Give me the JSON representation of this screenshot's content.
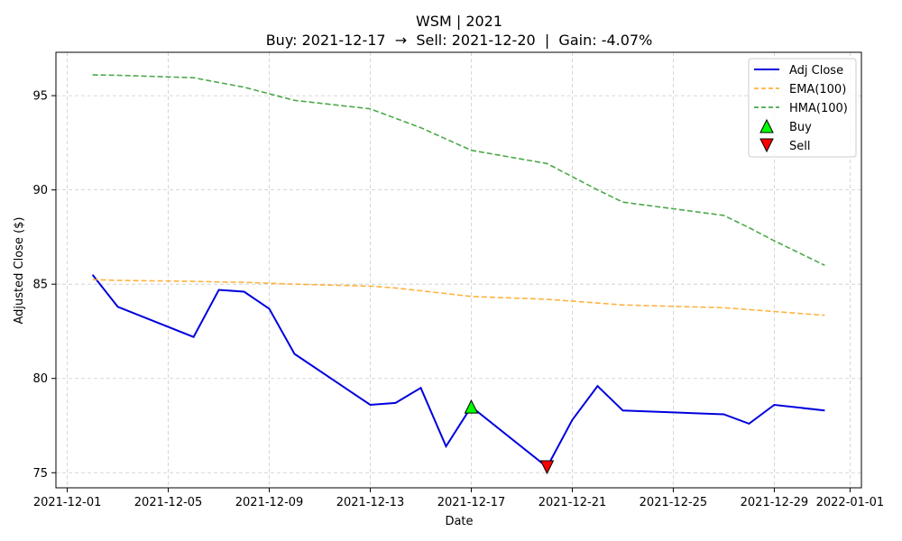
{
  "chart_data": {
    "type": "line",
    "title": "WSM | 2021",
    "subtitle": "Buy: 2021-12-17  →  Sell: 2021-12-20  |  Gain: -4.07%",
    "xlabel": "Date",
    "ylabel": "Adjusted Close ($)",
    "xlim": [
      "2021-12-01",
      "2022-01-01"
    ],
    "ylim": [
      74.2,
      97.3
    ],
    "x_ticks": [
      "2021-12-01",
      "2021-12-05",
      "2021-12-09",
      "2021-12-13",
      "2021-12-17",
      "2021-12-21",
      "2021-12-25",
      "2021-12-29",
      "2022-01-01"
    ],
    "y_ticks": [
      75,
      80,
      85,
      90,
      95
    ],
    "grid": true,
    "legend_position": "top-right",
    "series": [
      {
        "name": "Adj Close",
        "color": "#0000dd",
        "style": "solid",
        "x": [
          "2021-12-02",
          "2021-12-03",
          "2021-12-06",
          "2021-12-07",
          "2021-12-08",
          "2021-12-09",
          "2021-12-10",
          "2021-12-13",
          "2021-12-14",
          "2021-12-15",
          "2021-12-16",
          "2021-12-17",
          "2021-12-20",
          "2021-12-21",
          "2021-12-22",
          "2021-12-23",
          "2021-12-27",
          "2021-12-28",
          "2021-12-29",
          "2021-12-31"
        ],
        "values": [
          85.5,
          83.8,
          82.2,
          84.7,
          84.6,
          83.7,
          81.3,
          78.6,
          78.7,
          79.5,
          76.4,
          78.5,
          75.3,
          77.8,
          79.6,
          78.3,
          78.1,
          77.6,
          78.6,
          78.3
        ]
      },
      {
        "name": "EMA(100)",
        "color": "#ffa520",
        "style": "dashed",
        "x": [
          "2021-12-02",
          "2021-12-03",
          "2021-12-06",
          "2021-12-07",
          "2021-12-08",
          "2021-12-09",
          "2021-12-10",
          "2021-12-13",
          "2021-12-14",
          "2021-12-15",
          "2021-12-16",
          "2021-12-17",
          "2021-12-20",
          "2021-12-21",
          "2021-12-22",
          "2021-12-23",
          "2021-12-27",
          "2021-12-28",
          "2021-12-29",
          "2021-12-31"
        ],
        "values": [
          85.25,
          85.2,
          85.15,
          85.12,
          85.1,
          85.05,
          85.0,
          84.9,
          84.8,
          84.65,
          84.5,
          84.35,
          84.2,
          84.1,
          84.0,
          83.9,
          83.75,
          83.65,
          83.55,
          83.35
        ]
      },
      {
        "name": "HMA(100)",
        "color": "#2a9a2a",
        "style": "dashed",
        "x": [
          "2021-12-02",
          "2021-12-03",
          "2021-12-06",
          "2021-12-07",
          "2021-12-08",
          "2021-12-09",
          "2021-12-10",
          "2021-12-13",
          "2021-12-14",
          "2021-12-15",
          "2021-12-16",
          "2021-12-17",
          "2021-12-20",
          "2021-12-21",
          "2021-12-22",
          "2021-12-23",
          "2021-12-27",
          "2021-12-28",
          "2021-12-29",
          "2021-12-31"
        ],
        "values": [
          96.1,
          96.08,
          95.95,
          95.7,
          95.45,
          95.1,
          94.75,
          94.3,
          93.8,
          93.3,
          92.7,
          92.1,
          91.4,
          90.7,
          90.0,
          89.35,
          88.65,
          88.0,
          87.3,
          86.0
        ]
      }
    ],
    "markers": [
      {
        "name": "Buy",
        "x": "2021-12-17",
        "y": 78.5,
        "shape": "triangle-up",
        "color": "#00ff00"
      },
      {
        "name": "Sell",
        "x": "2021-12-20",
        "y": 75.3,
        "shape": "triangle-down",
        "color": "#ff0000"
      }
    ]
  }
}
